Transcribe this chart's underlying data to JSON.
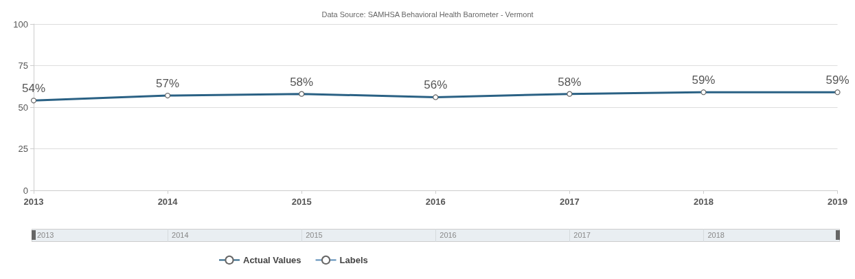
{
  "chart_data": {
    "type": "line",
    "title": "Data Source: SAMHSA Behavioral Health Barometer - Vermont",
    "categories": [
      "2013",
      "2014",
      "2015",
      "2016",
      "2017",
      "2018",
      "2019"
    ],
    "series": [
      {
        "name": "Actual Values",
        "color": "#2a6184",
        "values": [
          54,
          57,
          58,
          56,
          58,
          59,
          59
        ],
        "value_labels": [
          "54%",
          "57%",
          "58%",
          "56%",
          "58%",
          "59%",
          "59%"
        ]
      },
      {
        "name": "Labels",
        "color": "#5b8db8",
        "values": [
          null,
          null,
          null,
          null,
          null,
          null,
          null
        ]
      }
    ],
    "ylim": [
      0,
      100
    ],
    "yticks": [
      0,
      25,
      50,
      75,
      100
    ],
    "grid": "y",
    "legend": "bottom",
    "marker": "circle"
  }
}
